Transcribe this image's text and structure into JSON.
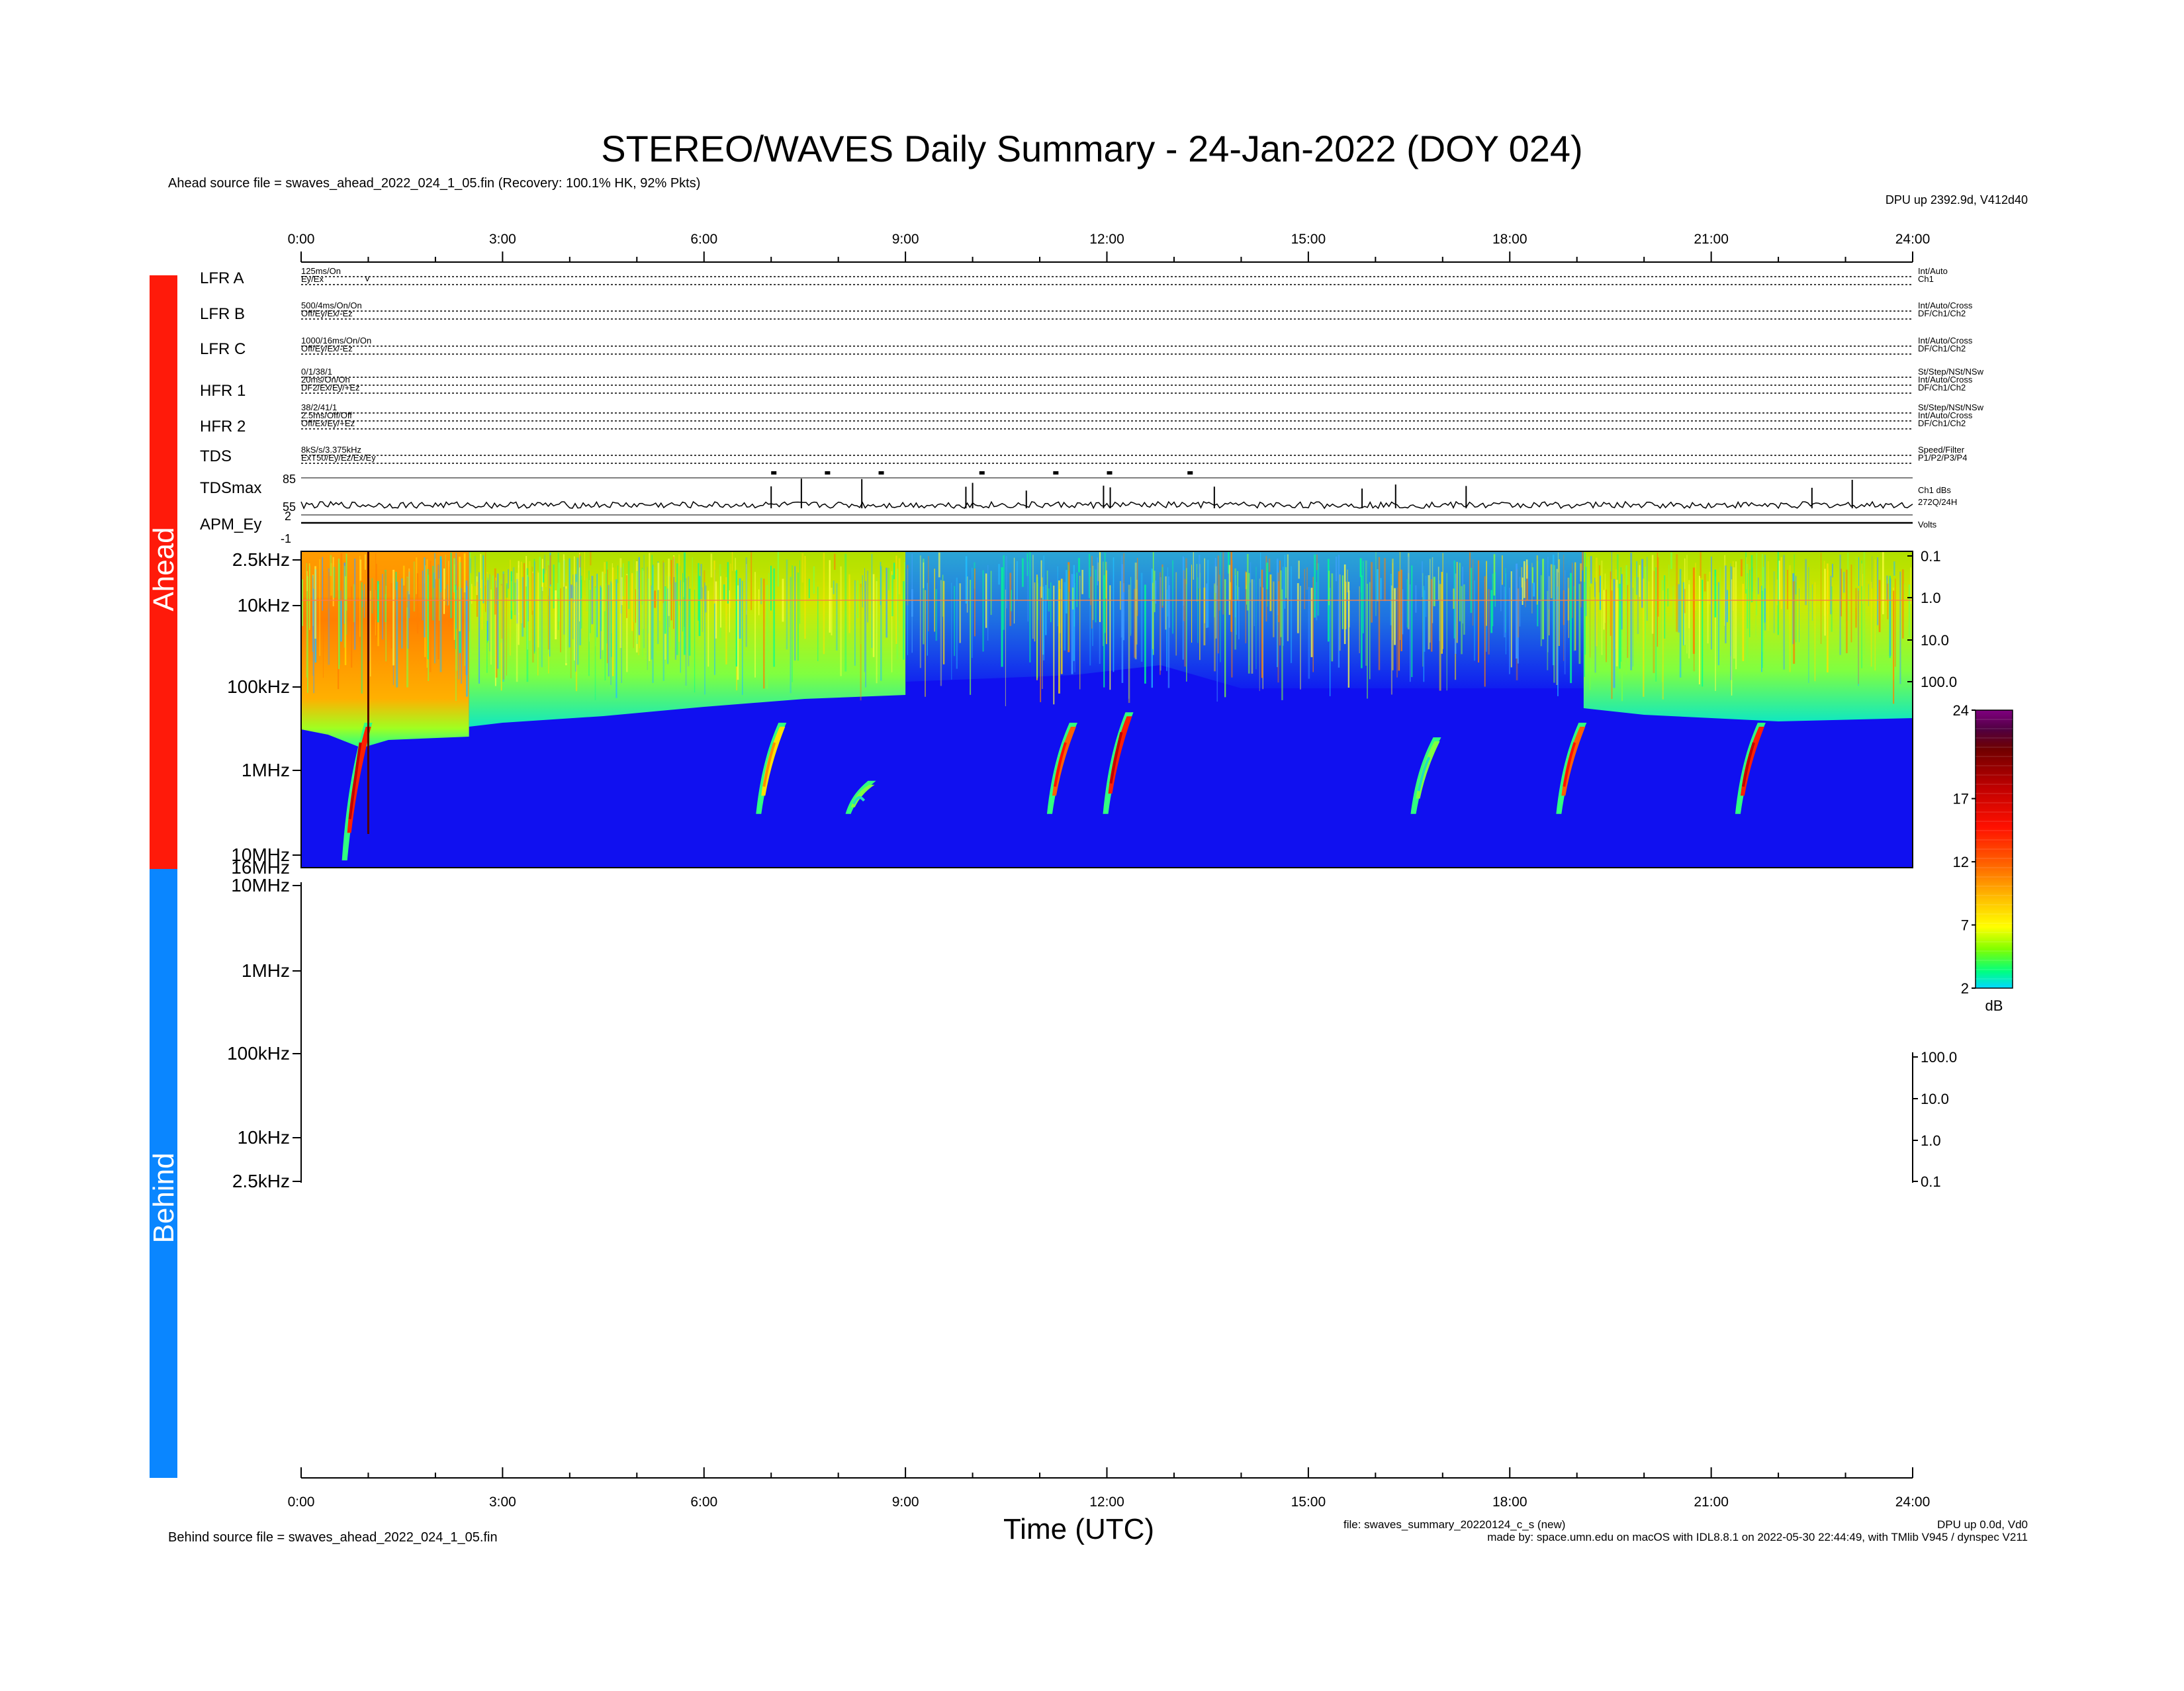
{
  "title": "STEREO/WAVES Daily Summary - 24-Jan-2022 (DOY 024)",
  "ahead_source": "Ahead source file = swaves_ahead_2022_024_1_05.fin (Recovery: 100.1% HK,  92% Pkts)",
  "behind_source": "Behind source file = swaves_ahead_2022_024_1_05.fin",
  "dpu_ahead": "DPU up 2392.9d, V412d40",
  "dpu_behind": "DPU up 0.0d, Vd0",
  "file_line": "file: swaves_summary_20220124_c_s (new)",
  "made_by": "made by: space.umn.edu on macOS with IDL8.8.1 on 2022-05-30 22:44:49, with TMlib V945 / dynspec V211",
  "xlabel": "Time (UTC)",
  "side_labels": {
    "ahead": "Ahead",
    "behind": "Behind"
  },
  "colors": {
    "ahead_bar": "#ff1a0a",
    "behind_bar": "#0a86ff",
    "spec_bg": "#1010f0"
  },
  "time_ticks": [
    "0:00",
    "3:00",
    "6:00",
    "9:00",
    "12:00",
    "15:00",
    "18:00",
    "21:00",
    "24:00"
  ],
  "housekeeping": [
    {
      "name": "LFR A",
      "left": [
        "125ms/On",
        "Ey/Ex"
      ],
      "right": [
        "Int/Auto",
        "Ch1"
      ]
    },
    {
      "name": "LFR B",
      "left": [
        "500/4ms/On/On",
        "Off/Ey/Ex/-Ez"
      ],
      "right": [
        "Int/Auto/Cross",
        "DF/Ch1/Ch2"
      ]
    },
    {
      "name": "LFR C",
      "left": [
        "1000/16ms/On/On",
        "Off/Ey/Ex/-Ez"
      ],
      "right": [
        "Int/Auto/Cross",
        "DF/Ch1/Ch2"
      ]
    },
    {
      "name": "HFR 1",
      "left": [
        "0/1/38/1",
        "20ms/On/On",
        "DF2/Ex/Ey/+Ez"
      ],
      "right": [
        "St/Step/NSt/NSw",
        "Int/Auto/Cross",
        "DF/Ch1/Ch2"
      ]
    },
    {
      "name": "HFR 2",
      "left": [
        "38/2/41/1",
        "2.5ms/Off/Off",
        "Off/Ex/Ey/+Ez"
      ],
      "right": [
        "St/Step/NSt/NSw",
        "Int/Auto/Cross",
        "DF/Ch1/Ch2"
      ]
    },
    {
      "name": "TDS",
      "left": [
        "8kS/s/3.375kHz",
        "ExT50/Ey/Ez/Ex/Ey"
      ],
      "right": [
        "Speed/Filter",
        "P1/P2/P3/P4"
      ]
    }
  ],
  "tdsmax": {
    "label": "TDSmax",
    "ticks": [
      "85",
      "55"
    ],
    "right": [
      "Ch1 dBs",
      "272Q/24H"
    ]
  },
  "apm": {
    "label": "APM_Ey",
    "ticks": [
      "2",
      "-1"
    ],
    "right": "Volts"
  },
  "freq_labels": [
    "2.5kHz",
    "10kHz",
    "100kHz",
    "1MHz",
    "10MHz"
  ],
  "ahead_bottom_label": "16MHz",
  "right_ticks_ahead": [
    "0.1",
    "1.0",
    "10.0",
    "100.0"
  ],
  "right_ticks_behind": [
    "100.0",
    "10.0",
    "1.0",
    "0.1"
  ],
  "colorbar": {
    "ticks": [
      "24",
      "17",
      "12",
      "7",
      "2"
    ],
    "unit": "dB"
  },
  "chart_data": {
    "type": "heatmap",
    "title": "STEREO/WAVES Daily Summary - 24-Jan-2022 (DOY 024)",
    "xlabel": "Time (UTC)",
    "xlim": [
      "0:00",
      "24:00"
    ],
    "ylim": [
      "2.5kHz",
      "16MHz"
    ],
    "y_scale": "log",
    "color_scale": {
      "unit": "dB",
      "range": [
        2,
        24
      ]
    },
    "radio_bursts": [
      {
        "start": "0:40",
        "top_freq": "200kHz",
        "bottom_freq": "10MHz",
        "peak_db": 24
      },
      {
        "start": "6:50",
        "top_freq": "200kHz",
        "bottom_freq": "1MHz",
        "peak_db": 10
      },
      {
        "start": "8:10",
        "top_freq": "1MHz",
        "bottom_freq": "1MHz",
        "peak_db": 6
      },
      {
        "start": "11:10",
        "top_freq": "200kHz",
        "bottom_freq": "1MHz",
        "peak_db": 18
      },
      {
        "start": "12:00",
        "top_freq": "150kHz",
        "bottom_freq": "1MHz",
        "peak_db": 20
      },
      {
        "start": "16:35",
        "top_freq": "300kHz",
        "bottom_freq": "1MHz",
        "peak_db": 8
      },
      {
        "start": "18:45",
        "top_freq": "200kHz",
        "bottom_freq": "1MHz",
        "peak_db": 18
      },
      {
        "start": "21:25",
        "top_freq": "200kHz",
        "bottom_freq": "1MHz",
        "peak_db": 20
      }
    ],
    "background_bands": [
      {
        "from": "0:00",
        "to": "2:30",
        "freq_top": "2.5kHz",
        "freq_bottom": "250kHz",
        "level_db": 14
      },
      {
        "from": "2:30",
        "to": "9:00",
        "freq_top": "2.5kHz",
        "freq_bottom": "150kHz",
        "level_db": 8
      },
      {
        "from": "9:00",
        "to": "19:10",
        "freq_top": "2.5kHz",
        "freq_bottom": "100kHz",
        "level_db": 4
      },
      {
        "from": "19:10",
        "to": "24:00",
        "freq_top": "2.5kHz",
        "freq_bottom": "150kHz",
        "level_db": 8
      }
    ],
    "tdsmax_spikes_hours": [
      7.0,
      7.45,
      8.35,
      9.9,
      10.0,
      10.8,
      11.95,
      12.05,
      13.6,
      15.8,
      16.3,
      17.35,
      22.5,
      23.1
    ]
  }
}
